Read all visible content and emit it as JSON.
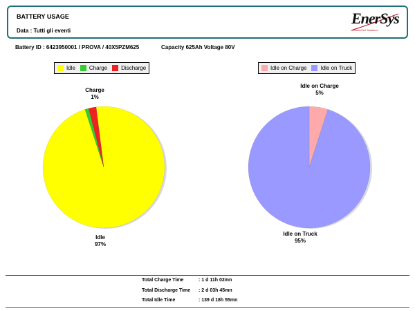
{
  "header": {
    "title": "BATTERY USAGE",
    "subtitle": "Data : Tutti gli eventi",
    "logo_text": "EnerSys",
    "logo_tagline": "Power/Full Solutions"
  },
  "battery_info": {
    "id": "Battery ID : 6423950001 / PROVA  / 40X5PZM625",
    "capacity": "Capacity 625Ah  Voltage 80V"
  },
  "chart_data": [
    {
      "type": "pie",
      "title": "",
      "categories": [
        "Idle",
        "Charge",
        "Discharge"
      ],
      "values": [
        97,
        1,
        2
      ],
      "colors": [
        "#ffff00",
        "#33cc33",
        "#ee2222"
      ],
      "legend": {
        "placement": "top",
        "labels": [
          "Idle",
          "Charge",
          "Discharge"
        ]
      },
      "data_labels": [
        {
          "name": "Idle",
          "percent": "97%"
        },
        {
          "name": "Charge",
          "percent": "1%"
        }
      ]
    },
    {
      "type": "pie",
      "title": "",
      "categories": [
        "Idle on Charge",
        "Idle on Truck"
      ],
      "values": [
        5,
        95
      ],
      "colors": [
        "#ffaaaa",
        "#9999ff"
      ],
      "legend": {
        "placement": "top",
        "labels": [
          "Idle on Charge",
          "Idle on Truck"
        ]
      },
      "data_labels": [
        {
          "name": "Idle on Charge",
          "percent": "5%"
        },
        {
          "name": "Idle on Truck",
          "percent": "95%"
        }
      ]
    }
  ],
  "totals": [
    {
      "label": "Total Charge Time",
      "value": ": 1 d 11h 02mn"
    },
    {
      "label": "Total Discharge Time",
      "value": ": 2 d 03h 45mn"
    },
    {
      "label": "Total Idle Time",
      "value": ": 139 d 18h 55mn"
    }
  ]
}
